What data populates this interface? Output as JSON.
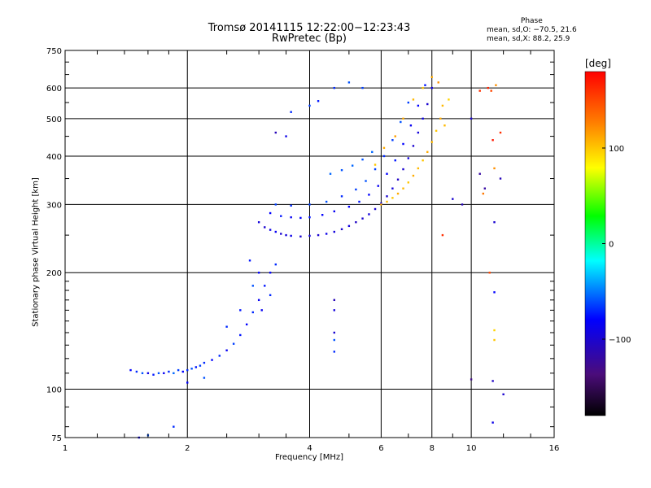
{
  "chart_data": {
    "type": "scatter",
    "title": "Tromsø 20141115 12:22:00−12:23:43",
    "subtitle": "RwPretec (Bp)",
    "xlabel": "Frequency [MHz]",
    "ylabel": "Stationary phase Virtual Height [km]",
    "x_scale": "log",
    "y_scale": "log",
    "xlim": [
      1,
      16
    ],
    "ylim": [
      75,
      750
    ],
    "x_ticks": [
      "1",
      "2",
      "4",
      "6",
      "8",
      "10",
      "16"
    ],
    "x_tick_values": [
      1,
      2,
      4,
      6,
      8,
      10,
      16
    ],
    "y_ticks": [
      "750",
      "600",
      "500",
      "400",
      "300",
      "200",
      "100",
      "75"
    ],
    "y_tick_values": [
      750,
      600,
      500,
      400,
      300,
      200,
      100,
      75
    ],
    "grid": true,
    "stats_header": "Phase",
    "stats": [
      "mean, sd,O: −70.5, 21.6",
      "mean, sd,X:  88.2, 25.9"
    ],
    "colorbar": {
      "label": "[deg]",
      "range": [
        -180,
        180
      ],
      "ticks": [
        "100",
        "0",
        "−100"
      ],
      "tick_values": [
        100,
        0,
        -100
      ]
    },
    "series": [
      {
        "points": [
          [
            1.45,
            112,
            -80
          ],
          [
            1.5,
            111,
            -70
          ],
          [
            1.55,
            110,
            -60
          ],
          [
            1.6,
            110,
            -90
          ],
          [
            1.65,
            109,
            -75
          ],
          [
            1.7,
            110,
            -60
          ],
          [
            1.75,
            110,
            -85
          ],
          [
            1.8,
            111,
            -70
          ],
          [
            1.85,
            110,
            -55
          ],
          [
            1.9,
            112,
            -65
          ],
          [
            1.95,
            111,
            -80
          ],
          [
            2.0,
            112,
            -70
          ],
          [
            2.05,
            113,
            -60
          ],
          [
            2.1,
            114,
            -75
          ],
          [
            2.15,
            115,
            -65
          ],
          [
            2.2,
            117,
            -70
          ],
          [
            2.3,
            119,
            -80
          ],
          [
            2.4,
            122,
            -70
          ],
          [
            2.5,
            126,
            -85
          ],
          [
            2.6,
            131,
            -65
          ],
          [
            2.7,
            138,
            -75
          ],
          [
            2.8,
            147,
            -80
          ],
          [
            2.9,
            158,
            -70
          ],
          [
            3.0,
            170,
            -85
          ],
          [
            3.1,
            185,
            -75
          ],
          [
            3.2,
            200,
            -80
          ],
          [
            3.3,
            210,
            -70
          ],
          [
            1.6,
            76,
            -60
          ],
          [
            1.52,
            75,
            -90
          ],
          [
            1.85,
            80,
            -70
          ],
          [
            2.2,
            107,
            -60
          ],
          [
            2.0,
            104,
            -80
          ],
          [
            2.5,
            145,
            -70
          ],
          [
            2.7,
            160,
            -75
          ],
          [
            2.9,
            185,
            -60
          ],
          [
            3.0,
            200,
            -80
          ],
          [
            2.85,
            215,
            -75
          ],
          [
            3.05,
            160,
            -85
          ],
          [
            3.2,
            175,
            -70
          ]
        ]
      },
      {
        "points": [
          [
            3.0,
            270,
            -95
          ],
          [
            3.1,
            262,
            -100
          ],
          [
            3.2,
            258,
            -90
          ],
          [
            3.3,
            255,
            -85
          ],
          [
            3.4,
            252,
            -100
          ],
          [
            3.5,
            250,
            -95
          ],
          [
            3.6,
            249,
            -90
          ],
          [
            3.8,
            248,
            -100
          ],
          [
            4.0,
            249,
            -95
          ],
          [
            4.2,
            250,
            -100
          ],
          [
            4.4,
            252,
            -90
          ],
          [
            4.6,
            255,
            -95
          ],
          [
            4.8,
            259,
            -100
          ],
          [
            5.0,
            264,
            -95
          ],
          [
            5.2,
            270,
            -105
          ],
          [
            5.4,
            276,
            -100
          ],
          [
            5.6,
            283,
            -95
          ],
          [
            5.8,
            292,
            -100
          ],
          [
            6.0,
            302,
            -90
          ],
          [
            6.2,
            315,
            -100
          ],
          [
            6.4,
            330,
            -95
          ],
          [
            6.6,
            348,
            -105
          ],
          [
            6.8,
            370,
            -100
          ],
          [
            7.0,
            395,
            -95
          ],
          [
            7.2,
            425,
            -100
          ],
          [
            7.4,
            460,
            -95
          ],
          [
            7.6,
            500,
            -90
          ],
          [
            7.8,
            545,
            -100
          ],
          [
            8.0,
            600,
            -95
          ],
          [
            3.2,
            285,
            -80
          ],
          [
            3.4,
            280,
            -75
          ],
          [
            3.6,
            278,
            -85
          ],
          [
            3.8,
            277,
            -80
          ],
          [
            4.0,
            278,
            -75
          ],
          [
            4.3,
            282,
            -80
          ],
          [
            4.6,
            288,
            -85
          ],
          [
            5.0,
            296,
            -80
          ],
          [
            5.3,
            305,
            -75
          ],
          [
            5.6,
            318,
            -80
          ],
          [
            5.9,
            335,
            -85
          ],
          [
            6.2,
            360,
            -80
          ],
          [
            6.5,
            390,
            -75
          ],
          [
            6.8,
            430,
            -80
          ],
          [
            7.1,
            480,
            -85
          ],
          [
            7.4,
            540,
            -80
          ],
          [
            7.7,
            610,
            -75
          ],
          [
            3.3,
            300,
            -65
          ],
          [
            3.6,
            298,
            -70
          ],
          [
            4.0,
            300,
            -65
          ],
          [
            4.4,
            305,
            -60
          ],
          [
            4.8,
            315,
            -70
          ],
          [
            5.2,
            328,
            -65
          ],
          [
            5.5,
            345,
            -60
          ],
          [
            5.8,
            370,
            -65
          ],
          [
            6.1,
            400,
            -70
          ],
          [
            6.4,
            440,
            -65
          ],
          [
            6.7,
            490,
            -60
          ],
          [
            7.0,
            550,
            -65
          ],
          [
            4.5,
            360,
            -55
          ],
          [
            4.8,
            368,
            -60
          ],
          [
            5.1,
            378,
            -55
          ],
          [
            5.4,
            392,
            -60
          ],
          [
            5.7,
            410,
            -55
          ],
          [
            3.6,
            520,
            -70
          ],
          [
            4.0,
            540,
            -65
          ],
          [
            4.2,
            555,
            -75
          ],
          [
            4.6,
            600,
            -70
          ],
          [
            5.0,
            620,
            -60
          ],
          [
            5.4,
            600,
            -65
          ],
          [
            3.5,
            450,
            -90
          ],
          [
            3.3,
            460,
            -110
          ]
        ]
      },
      {
        "points": [
          [
            6.0,
            300,
            110
          ],
          [
            6.2,
            305,
            105
          ],
          [
            6.4,
            312,
            100
          ],
          [
            6.6,
            320,
            110
          ],
          [
            6.8,
            330,
            105
          ],
          [
            7.0,
            342,
            100
          ],
          [
            7.2,
            356,
            110
          ],
          [
            7.4,
            372,
            105
          ],
          [
            7.6,
            390,
            100
          ],
          [
            7.8,
            410,
            110
          ],
          [
            8.0,
            435,
            105
          ],
          [
            8.2,
            465,
            100
          ],
          [
            8.4,
            500,
            110
          ],
          [
            8.5,
            540,
            105
          ],
          [
            6.5,
            450,
            115
          ],
          [
            6.8,
            500,
            110
          ],
          [
            7.2,
            560,
            105
          ],
          [
            7.6,
            600,
            100
          ],
          [
            8.0,
            640,
            110
          ],
          [
            8.3,
            620,
            120
          ],
          [
            5.8,
            380,
            100
          ],
          [
            6.1,
            420,
            110
          ],
          [
            8.8,
            560,
            95
          ],
          [
            8.6,
            480,
            105
          ]
        ]
      },
      {
        "points": [
          [
            10.0,
            106,
            -130
          ],
          [
            11.2,
            590,
            150
          ],
          [
            11.0,
            600,
            165
          ],
          [
            11.5,
            610,
            120
          ],
          [
            10.5,
            590,
            160
          ],
          [
            11.8,
            350,
            -110
          ],
          [
            10.8,
            330,
            -120
          ],
          [
            12.0,
            97,
            -100
          ],
          [
            11.3,
            105,
            -105
          ],
          [
            11.3,
            82,
            -90
          ],
          [
            10.7,
            320,
            130
          ],
          [
            11.3,
            440,
            170
          ],
          [
            11.8,
            460,
            160
          ],
          [
            11.4,
            372,
            120
          ],
          [
            11.4,
            142,
            95
          ],
          [
            11.4,
            134,
            100
          ],
          [
            11.4,
            178,
            -80
          ],
          [
            11.4,
            270,
            -100
          ],
          [
            4.6,
            170,
            -110
          ],
          [
            4.6,
            160,
            -95
          ],
          [
            4.6,
            140,
            -100
          ],
          [
            4.6,
            134,
            -60
          ],
          [
            4.6,
            125,
            -70
          ],
          [
            9.0,
            310,
            -100
          ],
          [
            8.5,
            250,
            160
          ],
          [
            9.5,
            300,
            -110
          ],
          [
            10.0,
            500,
            -100
          ],
          [
            10.5,
            360,
            -120
          ],
          [
            11.1,
            200,
            150
          ]
        ]
      }
    ]
  }
}
